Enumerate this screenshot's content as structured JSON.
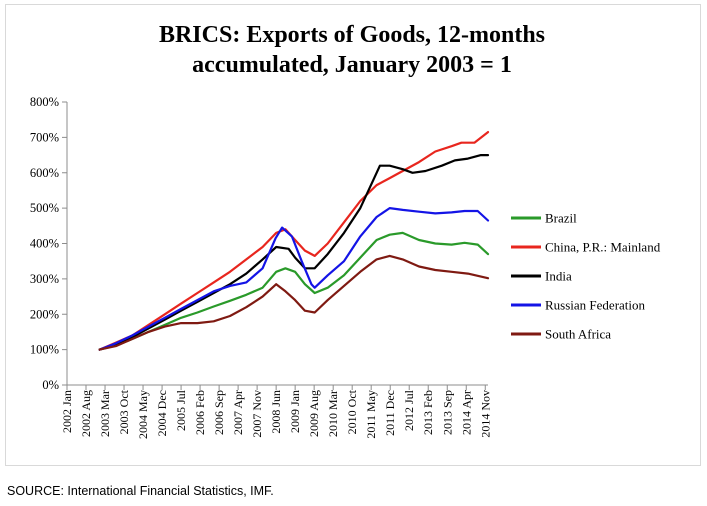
{
  "source_note": "SOURCE: International Financial Statistics, IMF.",
  "chart_data": {
    "type": "line",
    "title_line1": "BRICS: Exports of Goods, 12-months",
    "title_line2": "accumulated, January 2003 = 1",
    "yticks": [
      "0%",
      "100%",
      "200%",
      "300%",
      "400%",
      "500%",
      "600%",
      "700%",
      "800%"
    ],
    "ylim": [
      0,
      8
    ],
    "xlim": [
      2002.0,
      2014.917
    ],
    "xticks": [
      {
        "label": "2002 Jan",
        "x": 2002.0
      },
      {
        "label": "2002 Aug",
        "x": 2002.583
      },
      {
        "label": "2003 Mar",
        "x": 2003.167
      },
      {
        "label": "2003 Oct",
        "x": 2003.75
      },
      {
        "label": "2004 May",
        "x": 2004.333
      },
      {
        "label": "2004 Dec",
        "x": 2004.917
      },
      {
        "label": "2005 Jul",
        "x": 2005.5
      },
      {
        "label": "2006 Feb",
        "x": 2006.083
      },
      {
        "label": "2006 Sep",
        "x": 2006.667
      },
      {
        "label": "2007 Apr",
        "x": 2007.25
      },
      {
        "label": "2007 Nov",
        "x": 2007.833
      },
      {
        "label": "2008 Jun",
        "x": 2008.417
      },
      {
        "label": "2009 Jan",
        "x": 2009.0
      },
      {
        "label": "2009 Aug",
        "x": 2009.583
      },
      {
        "label": "2010 Mar",
        "x": 2010.167
      },
      {
        "label": "2010 Oct",
        "x": 2010.75
      },
      {
        "label": "2011 May",
        "x": 2011.333
      },
      {
        "label": "2011 Dec",
        "x": 2011.917
      },
      {
        "label": "2012 Jul",
        "x": 2012.5
      },
      {
        "label": "2013 Feb",
        "x": 2013.083
      },
      {
        "label": "2013 Sep",
        "x": 2013.667
      },
      {
        "label": "2014 Apr",
        "x": 2014.25
      },
      {
        "label": "2014 Nov",
        "x": 2014.833
      }
    ],
    "legend_position": "right",
    "grid": false,
    "series": [
      {
        "name": "Brazil",
        "color": "#2a9a2a",
        "points": [
          [
            2003.0,
            1.0
          ],
          [
            2003.5,
            1.12
          ],
          [
            2004.0,
            1.3
          ],
          [
            2004.5,
            1.5
          ],
          [
            2005.0,
            1.7
          ],
          [
            2005.5,
            1.9
          ],
          [
            2006.0,
            2.05
          ],
          [
            2006.5,
            2.22
          ],
          [
            2007.0,
            2.38
          ],
          [
            2007.5,
            2.55
          ],
          [
            2008.0,
            2.75
          ],
          [
            2008.42,
            3.2
          ],
          [
            2008.7,
            3.3
          ],
          [
            2009.0,
            3.2
          ],
          [
            2009.3,
            2.85
          ],
          [
            2009.6,
            2.6
          ],
          [
            2010.0,
            2.75
          ],
          [
            2010.5,
            3.1
          ],
          [
            2011.0,
            3.6
          ],
          [
            2011.5,
            4.1
          ],
          [
            2011.9,
            4.25
          ],
          [
            2012.3,
            4.3
          ],
          [
            2012.8,
            4.1
          ],
          [
            2013.3,
            4.0
          ],
          [
            2013.8,
            3.97
          ],
          [
            2014.2,
            4.02
          ],
          [
            2014.6,
            3.97
          ],
          [
            2014.917,
            3.7
          ]
        ]
      },
      {
        "name": "China, P.R.: Mainland",
        "color": "#e8261e",
        "points": [
          [
            2003.0,
            1.0
          ],
          [
            2003.5,
            1.2
          ],
          [
            2004.0,
            1.4
          ],
          [
            2004.5,
            1.7
          ],
          [
            2005.0,
            2.0
          ],
          [
            2005.5,
            2.3
          ],
          [
            2006.0,
            2.6
          ],
          [
            2006.5,
            2.9
          ],
          [
            2007.0,
            3.2
          ],
          [
            2007.5,
            3.55
          ],
          [
            2008.0,
            3.9
          ],
          [
            2008.42,
            4.3
          ],
          [
            2008.7,
            4.4
          ],
          [
            2009.0,
            4.1
          ],
          [
            2009.3,
            3.8
          ],
          [
            2009.6,
            3.65
          ],
          [
            2010.0,
            4.0
          ],
          [
            2010.5,
            4.6
          ],
          [
            2011.0,
            5.2
          ],
          [
            2011.5,
            5.65
          ],
          [
            2011.9,
            5.85
          ],
          [
            2012.3,
            6.05
          ],
          [
            2012.8,
            6.3
          ],
          [
            2013.3,
            6.6
          ],
          [
            2013.8,
            6.75
          ],
          [
            2014.1,
            6.85
          ],
          [
            2014.5,
            6.85
          ],
          [
            2014.917,
            7.15
          ]
        ]
      },
      {
        "name": "India",
        "color": "#000000",
        "points": [
          [
            2003.0,
            1.0
          ],
          [
            2003.5,
            1.13
          ],
          [
            2004.0,
            1.35
          ],
          [
            2004.5,
            1.6
          ],
          [
            2005.0,
            1.85
          ],
          [
            2005.5,
            2.1
          ],
          [
            2006.0,
            2.35
          ],
          [
            2006.5,
            2.6
          ],
          [
            2007.0,
            2.85
          ],
          [
            2007.5,
            3.15
          ],
          [
            2008.0,
            3.55
          ],
          [
            2008.42,
            3.9
          ],
          [
            2008.8,
            3.85
          ],
          [
            2009.0,
            3.6
          ],
          [
            2009.3,
            3.3
          ],
          [
            2009.6,
            3.3
          ],
          [
            2010.0,
            3.7
          ],
          [
            2010.5,
            4.3
          ],
          [
            2011.0,
            5.0
          ],
          [
            2011.4,
            5.8
          ],
          [
            2011.6,
            6.2
          ],
          [
            2011.9,
            6.2
          ],
          [
            2012.3,
            6.1
          ],
          [
            2012.6,
            6.0
          ],
          [
            2013.0,
            6.05
          ],
          [
            2013.5,
            6.2
          ],
          [
            2013.9,
            6.35
          ],
          [
            2014.3,
            6.4
          ],
          [
            2014.7,
            6.5
          ],
          [
            2014.917,
            6.5
          ]
        ]
      },
      {
        "name": "Russian Federation",
        "color": "#1414e6",
        "points": [
          [
            2003.0,
            1.0
          ],
          [
            2003.5,
            1.18
          ],
          [
            2004.0,
            1.4
          ],
          [
            2004.5,
            1.65
          ],
          [
            2005.0,
            1.9
          ],
          [
            2005.5,
            2.15
          ],
          [
            2006.0,
            2.4
          ],
          [
            2006.5,
            2.65
          ],
          [
            2007.0,
            2.8
          ],
          [
            2007.5,
            2.9
          ],
          [
            2008.0,
            3.3
          ],
          [
            2008.4,
            4.15
          ],
          [
            2008.6,
            4.45
          ],
          [
            2008.9,
            4.2
          ],
          [
            2009.2,
            3.5
          ],
          [
            2009.5,
            2.85
          ],
          [
            2009.6,
            2.75
          ],
          [
            2010.0,
            3.1
          ],
          [
            2010.5,
            3.5
          ],
          [
            2011.0,
            4.2
          ],
          [
            2011.5,
            4.75
          ],
          [
            2011.9,
            5.0
          ],
          [
            2012.3,
            4.95
          ],
          [
            2012.8,
            4.9
          ],
          [
            2013.3,
            4.85
          ],
          [
            2013.8,
            4.88
          ],
          [
            2014.2,
            4.92
          ],
          [
            2014.6,
            4.92
          ],
          [
            2014.917,
            4.65
          ]
        ]
      },
      {
        "name": "South Africa",
        "color": "#7f1a12",
        "points": [
          [
            2003.0,
            1.0
          ],
          [
            2003.5,
            1.1
          ],
          [
            2004.0,
            1.3
          ],
          [
            2004.5,
            1.5
          ],
          [
            2005.0,
            1.65
          ],
          [
            2005.5,
            1.75
          ],
          [
            2006.0,
            1.75
          ],
          [
            2006.5,
            1.8
          ],
          [
            2007.0,
            1.95
          ],
          [
            2007.5,
            2.2
          ],
          [
            2008.0,
            2.5
          ],
          [
            2008.42,
            2.85
          ],
          [
            2008.7,
            2.65
          ],
          [
            2009.0,
            2.4
          ],
          [
            2009.3,
            2.1
          ],
          [
            2009.6,
            2.05
          ],
          [
            2010.0,
            2.4
          ],
          [
            2010.5,
            2.8
          ],
          [
            2011.0,
            3.2
          ],
          [
            2011.5,
            3.55
          ],
          [
            2011.9,
            3.65
          ],
          [
            2012.3,
            3.55
          ],
          [
            2012.8,
            3.35
          ],
          [
            2013.3,
            3.25
          ],
          [
            2013.8,
            3.2
          ],
          [
            2014.3,
            3.15
          ],
          [
            2014.917,
            3.02
          ]
        ]
      }
    ]
  }
}
